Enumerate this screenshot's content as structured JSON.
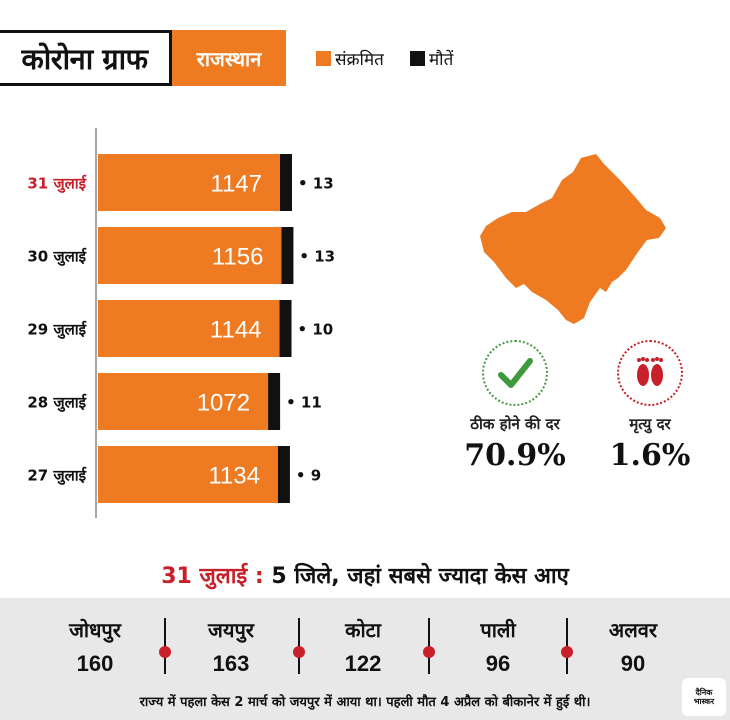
{
  "header": {
    "title": "कोरोना ग्राफ",
    "state": "राजस्थान"
  },
  "legend": {
    "items": [
      {
        "label": "संक्रमित",
        "color": "#ee7b22"
      },
      {
        "label": "मौतें",
        "color": "#111111"
      }
    ]
  },
  "chart_data": {
    "type": "bar",
    "orientation": "horizontal",
    "categories": [
      "31 जुलाई",
      "30 जुलाई",
      "29 जुलाई",
      "28 जुलाई",
      "27 जुलाई"
    ],
    "series": [
      {
        "name": "संक्रमित",
        "values": [
          1147,
          1156,
          1144,
          1072,
          1134
        ]
      },
      {
        "name": "मौतें",
        "values": [
          13,
          13,
          10,
          11,
          9
        ]
      }
    ],
    "highlight_category": "31 जुलाई",
    "colors": {
      "infected": "#ee7b22",
      "deaths": "#111111",
      "highlight_label": "#c8202a"
    }
  },
  "stats": {
    "recovery": {
      "label": "ठीक होने की दर",
      "value": "70.9%",
      "icon": "check-icon"
    },
    "mortality": {
      "label": "मृत्यु दर",
      "value": "1.6%",
      "icon": "footprints-icon"
    }
  },
  "districts": {
    "date": "31 जुलाई :",
    "title": "5 जिले, जहां सबसे ज्यादा केस आए",
    "items": [
      {
        "name": "जोधपुर",
        "count": "160"
      },
      {
        "name": "जयपुर",
        "count": "163"
      },
      {
        "name": "कोटा",
        "count": "122"
      },
      {
        "name": "पाली",
        "count": "96"
      },
      {
        "name": "अलवर",
        "count": "90"
      }
    ]
  },
  "footnote": "राज्य में पहला केस 2 मार्च को जयपुर में आया था। पहली मौत 4 अप्रैल को बीकानेर में हुई थी।",
  "logo": {
    "line1": "दैनिक",
    "line2": "भास्कर"
  }
}
